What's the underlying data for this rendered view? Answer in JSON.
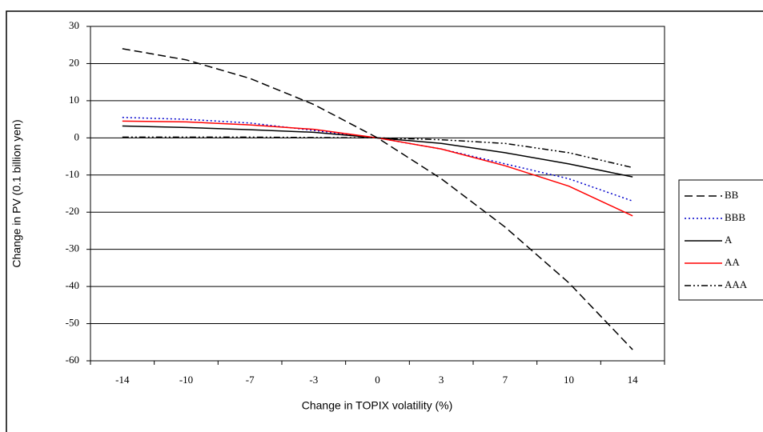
{
  "chart_data": {
    "type": "line",
    "y_label": "Change in PV (0.1 billion yen)",
    "x_label": "Change in TOPIX volatility (%)",
    "categories": [
      "-14",
      "-10",
      "-7",
      "-3",
      "0",
      "3",
      "7",
      "10",
      "14"
    ],
    "ylim": [
      -60,
      30
    ],
    "yticks": [
      -60,
      -50,
      -40,
      -30,
      -20,
      -10,
      0,
      10,
      20,
      30
    ],
    "grid": true,
    "legend": "right",
    "series": [
      {
        "name": "BB",
        "color": "#000000",
        "dash": "10,5",
        "values": [
          24,
          21,
          16,
          9,
          0,
          -11,
          -24,
          -39,
          -57
        ]
      },
      {
        "name": "BBB",
        "color": "#0000cc",
        "dash": "2,3",
        "values": [
          5.5,
          5,
          4,
          2,
          0,
          -3,
          -7,
          -11,
          -17
        ]
      },
      {
        "name": "A",
        "color": "#000000",
        "dash": "none",
        "values": [
          3.2,
          2.8,
          2.2,
          1.5,
          0,
          -1.5,
          -4,
          -7,
          -10.5
        ]
      },
      {
        "name": "AA",
        "color": "#ff0000",
        "dash": "none",
        "values": [
          4.5,
          4.3,
          3.5,
          2.3,
          0,
          -3,
          -7.5,
          -13,
          -21
        ]
      },
      {
        "name": "AAA",
        "color": "#000000",
        "dash": "8,3,2,3,2,3",
        "values": [
          0.2,
          0.2,
          0.2,
          0.1,
          0,
          -0.5,
          -1.5,
          -4,
          -8
        ]
      }
    ]
  }
}
